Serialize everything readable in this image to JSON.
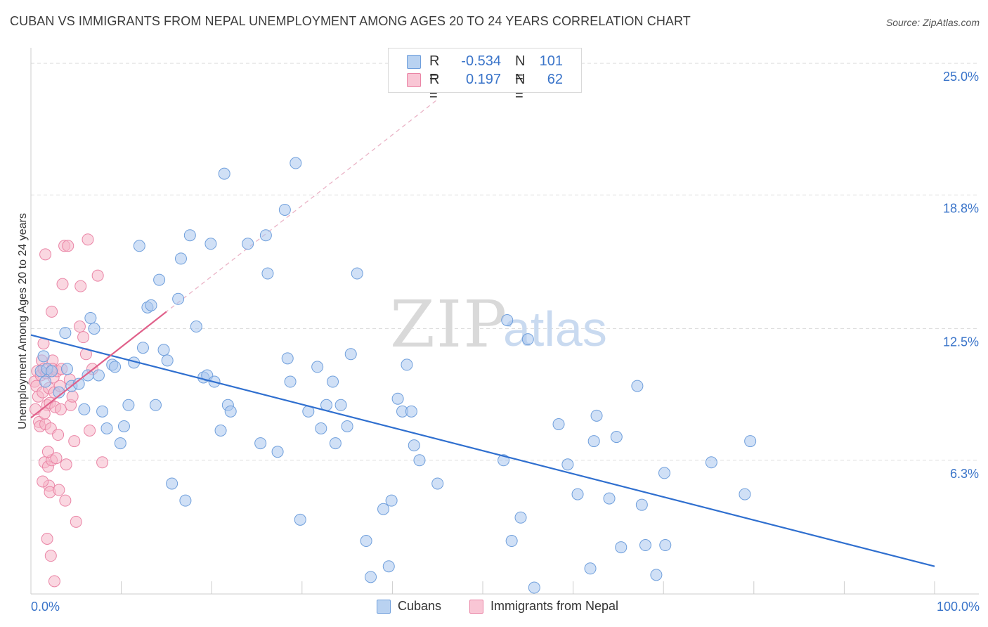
{
  "title": "CUBAN VS IMMIGRANTS FROM NEPAL UNEMPLOYMENT AMONG AGES 20 TO 24 YEARS CORRELATION CHART",
  "source": "Source: ZipAtlas.com",
  "watermark": {
    "zip": "ZIP",
    "atlas": "atlas"
  },
  "legend": {
    "rows": [
      {
        "r_label": "R =",
        "r_value": "-0.534",
        "n_label": "N =",
        "n_value": "101"
      },
      {
        "r_label": "R =",
        "r_value": "0.197",
        "n_label": "N =",
        "n_value": "62"
      }
    ]
  },
  "bottom_legend": [
    {
      "label": "Cubans"
    },
    {
      "label": "Immigrants from Nepal"
    }
  ],
  "colors": {
    "cuban_fill": "#a9c7ee",
    "cuban_stroke": "#6f9fdc",
    "cuban_line": "#2f6fcf",
    "nepal_fill": "#f6b6c9",
    "nepal_stroke": "#ea85a6",
    "nepal_line": "#e0608a",
    "axis_label": "#3a74c9",
    "grid": "#dddddd"
  },
  "chart_data": {
    "type": "scatter",
    "title": "CUBAN VS IMMIGRANTS FROM NEPAL UNEMPLOYMENT AMONG AGES 20 TO 24 YEARS CORRELATION CHART",
    "xlabel": "",
    "ylabel": "Unemployment Among Ages 20 to 24 years",
    "xlim": [
      0,
      100
    ],
    "ylim": [
      0,
      25.6
    ],
    "x_tick_labels": [
      "0.0%",
      "100.0%"
    ],
    "y_ticks": [
      6.3,
      12.5,
      18.8,
      25.0
    ],
    "y_tick_labels": [
      "6.3%",
      "12.5%",
      "18.8%",
      "25.0%"
    ],
    "grid": true,
    "legend_position": "top-center",
    "series": [
      {
        "name": "Cubans",
        "R": -0.534,
        "N": 101,
        "trend": {
          "x": [
            0,
            100
          ],
          "y": [
            12.2,
            1.3
          ]
        },
        "points": [
          [
            1.1,
            10.5
          ],
          [
            1.4,
            11.2
          ],
          [
            1.6,
            10.0
          ],
          [
            1.8,
            10.6
          ],
          [
            2.3,
            10.5
          ],
          [
            3.1,
            9.5
          ],
          [
            4.0,
            10.6
          ],
          [
            3.8,
            12.3
          ],
          [
            4.5,
            9.8
          ],
          [
            5.3,
            9.9
          ],
          [
            6.3,
            10.3
          ],
          [
            5.9,
            8.7
          ],
          [
            6.6,
            13.0
          ],
          [
            7.0,
            12.5
          ],
          [
            7.5,
            10.3
          ],
          [
            7.9,
            8.6
          ],
          [
            8.4,
            7.8
          ],
          [
            9.0,
            10.8
          ],
          [
            9.3,
            10.7
          ],
          [
            9.9,
            7.1
          ],
          [
            10.3,
            7.9
          ],
          [
            10.8,
            8.9
          ],
          [
            11.4,
            10.9
          ],
          [
            12.0,
            16.4
          ],
          [
            12.4,
            11.6
          ],
          [
            12.9,
            13.5
          ],
          [
            13.3,
            13.6
          ],
          [
            13.8,
            8.9
          ],
          [
            14.2,
            14.8
          ],
          [
            14.7,
            11.5
          ],
          [
            15.1,
            11.0
          ],
          [
            15.6,
            5.2
          ],
          [
            16.3,
            13.9
          ],
          [
            16.6,
            15.8
          ],
          [
            17.1,
            4.4
          ],
          [
            17.6,
            16.9
          ],
          [
            18.3,
            12.6
          ],
          [
            19.1,
            10.2
          ],
          [
            19.5,
            10.3
          ],
          [
            19.9,
            16.5
          ],
          [
            20.3,
            10.0
          ],
          [
            21.0,
            7.7
          ],
          [
            21.4,
            19.8
          ],
          [
            21.8,
            8.9
          ],
          [
            22.1,
            8.6
          ],
          [
            24.0,
            16.5
          ],
          [
            25.4,
            7.1
          ],
          [
            26.0,
            16.9
          ],
          [
            26.2,
            15.1
          ],
          [
            27.3,
            6.7
          ],
          [
            28.1,
            18.1
          ],
          [
            28.4,
            11.1
          ],
          [
            28.7,
            10.0
          ],
          [
            29.3,
            20.3
          ],
          [
            29.8,
            3.5
          ],
          [
            30.7,
            8.6
          ],
          [
            31.7,
            10.7
          ],
          [
            32.1,
            7.8
          ],
          [
            32.7,
            8.9
          ],
          [
            33.4,
            10.0
          ],
          [
            33.7,
            7.1
          ],
          [
            34.3,
            8.9
          ],
          [
            35.0,
            7.9
          ],
          [
            35.4,
            11.3
          ],
          [
            36.1,
            15.1
          ],
          [
            37.1,
            2.5
          ],
          [
            37.6,
            0.8
          ],
          [
            39.0,
            4.0
          ],
          [
            39.6,
            1.3
          ],
          [
            39.9,
            4.4
          ],
          [
            40.6,
            9.2
          ],
          [
            41.1,
            8.6
          ],
          [
            41.6,
            10.8
          ],
          [
            42.1,
            8.6
          ],
          [
            42.4,
            7.0
          ],
          [
            43.0,
            6.3
          ],
          [
            45.0,
            5.2
          ],
          [
            52.3,
            6.3
          ],
          [
            52.7,
            12.9
          ],
          [
            53.2,
            2.5
          ],
          [
            54.2,
            3.6
          ],
          [
            55.0,
            12.0
          ],
          [
            55.7,
            0.3
          ],
          [
            58.4,
            8.0
          ],
          [
            59.4,
            6.1
          ],
          [
            60.5,
            4.7
          ],
          [
            61.9,
            1.2
          ],
          [
            62.3,
            7.2
          ],
          [
            62.6,
            8.4
          ],
          [
            64.0,
            4.5
          ],
          [
            64.8,
            7.4
          ],
          [
            65.3,
            2.2
          ],
          [
            67.1,
            9.8
          ],
          [
            67.6,
            4.2
          ],
          [
            68.0,
            2.3
          ],
          [
            69.2,
            0.9
          ],
          [
            70.2,
            2.3
          ],
          [
            70.1,
            5.7
          ],
          [
            75.3,
            6.2
          ],
          [
            79.0,
            4.7
          ],
          [
            79.6,
            7.2
          ]
        ]
      },
      {
        "name": "Immigrants from Nepal",
        "R": 0.197,
        "N": 62,
        "trend": {
          "x": [
            0,
            15.0
          ],
          "y": [
            8.3,
            13.3
          ]
        },
        "trend_extended": {
          "x": [
            0,
            45
          ],
          "y": [
            8.3,
            23.3
          ]
        },
        "points": [
          [
            0.4,
            10.0
          ],
          [
            0.5,
            8.7
          ],
          [
            0.6,
            9.8
          ],
          [
            0.7,
            10.5
          ],
          [
            0.8,
            9.3
          ],
          [
            0.9,
            8.1
          ],
          [
            1.0,
            7.9
          ],
          [
            1.1,
            10.3
          ],
          [
            1.2,
            11.0
          ],
          [
            1.3,
            9.5
          ],
          [
            1.4,
            10.6
          ],
          [
            1.5,
            6.2
          ],
          [
            1.6,
            8.0
          ],
          [
            1.7,
            10.4
          ],
          [
            1.8,
            8.9
          ],
          [
            1.9,
            6.0
          ],
          [
            2.0,
            5.1
          ],
          [
            2.1,
            9.0
          ],
          [
            2.2,
            7.8
          ],
          [
            2.3,
            6.3
          ],
          [
            2.4,
            11.0
          ],
          [
            1.3,
            5.3
          ],
          [
            1.4,
            11.8
          ],
          [
            1.5,
            8.5
          ],
          [
            1.6,
            16.0
          ],
          [
            1.8,
            2.6
          ],
          [
            1.9,
            6.7
          ],
          [
            2.0,
            9.7
          ],
          [
            2.1,
            4.8
          ],
          [
            2.2,
            1.8
          ],
          [
            2.3,
            13.3
          ],
          [
            2.4,
            10.6
          ],
          [
            2.5,
            10.2
          ],
          [
            2.6,
            0.6
          ],
          [
            2.6,
            9.5
          ],
          [
            2.7,
            8.8
          ],
          [
            2.8,
            6.4
          ],
          [
            2.9,
            10.5
          ],
          [
            3.0,
            7.5
          ],
          [
            3.1,
            4.9
          ],
          [
            3.2,
            9.8
          ],
          [
            3.3,
            8.7
          ],
          [
            3.4,
            10.6
          ],
          [
            3.5,
            14.6
          ],
          [
            3.7,
            16.4
          ],
          [
            3.8,
            4.4
          ],
          [
            3.9,
            6.1
          ],
          [
            4.1,
            16.4
          ],
          [
            4.3,
            10.1
          ],
          [
            4.4,
            8.9
          ],
          [
            4.6,
            9.3
          ],
          [
            4.8,
            7.2
          ],
          [
            5.0,
            3.4
          ],
          [
            5.4,
            12.6
          ],
          [
            5.5,
            14.5
          ],
          [
            5.8,
            12.1
          ],
          [
            6.1,
            11.3
          ],
          [
            6.3,
            16.7
          ],
          [
            6.5,
            7.7
          ],
          [
            6.8,
            10.6
          ],
          [
            7.4,
            15.0
          ],
          [
            7.9,
            6.2
          ]
        ]
      }
    ]
  }
}
